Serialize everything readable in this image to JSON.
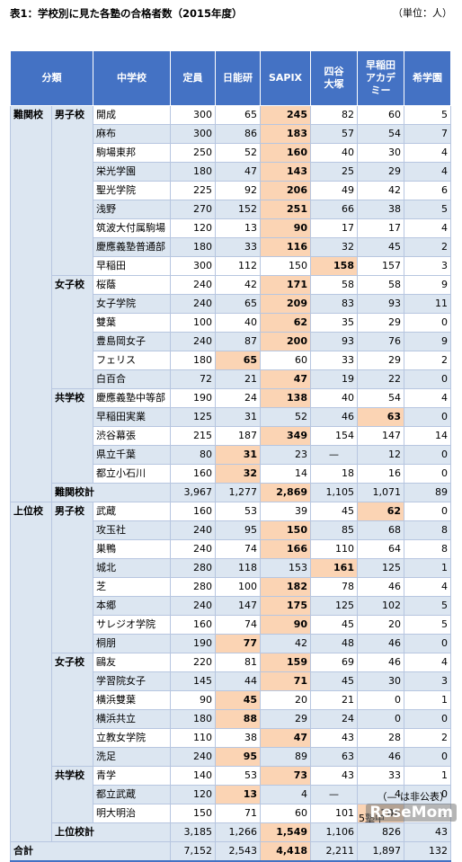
{
  "title": "表1：学校別に見た各塾の合格者数（2015年度）",
  "unit": "（単位：人）",
  "headers": {
    "bunrui": "分類",
    "school": "中学校",
    "teiin": "定員",
    "nichinoken": "日能研",
    "sapix": "SAPIX",
    "yotsuya": "四谷\n大塚",
    "waseda": "早稲田\nアカデ\nミー",
    "kibo": "希学園"
  },
  "groups": [
    {
      "category": "難関校",
      "subgroups": [
        {
          "type": "男子校",
          "rows": [
            {
              "school": "開成",
              "v": [
                "300",
                "65",
                "245",
                "82",
                "60",
                "5"
              ],
              "hl": [
                2
              ]
            },
            {
              "school": "麻布",
              "v": [
                "300",
                "86",
                "183",
                "57",
                "54",
                "7"
              ],
              "hl": [
                2
              ]
            },
            {
              "school": "駒場東邦",
              "v": [
                "250",
                "52",
                "160",
                "40",
                "30",
                "4"
              ],
              "hl": [
                2
              ]
            },
            {
              "school": "栄光学園",
              "v": [
                "180",
                "47",
                "143",
                "25",
                "29",
                "4"
              ],
              "hl": [
                2
              ]
            },
            {
              "school": "聖光学院",
              "v": [
                "225",
                "92",
                "206",
                "49",
                "42",
                "6"
              ],
              "hl": [
                2
              ]
            },
            {
              "school": "浅野",
              "v": [
                "270",
                "152",
                "251",
                "66",
                "38",
                "5"
              ],
              "hl": [
                2
              ]
            },
            {
              "school": "筑波大付属駒場",
              "v": [
                "120",
                "13",
                "90",
                "17",
                "17",
                "4"
              ],
              "hl": [
                2
              ]
            },
            {
              "school": "慶應義塾普通部",
              "v": [
                "180",
                "33",
                "116",
                "32",
                "45",
                "2"
              ],
              "hl": [
                2
              ]
            },
            {
              "school": "早稲田",
              "v": [
                "300",
                "112",
                "150",
                "158",
                "157",
                "3"
              ],
              "hl": [
                3
              ]
            }
          ]
        },
        {
          "type": "女子校",
          "rows": [
            {
              "school": "桜蔭",
              "v": [
                "240",
                "42",
                "171",
                "58",
                "58",
                "9"
              ],
              "hl": [
                2
              ]
            },
            {
              "school": "女子学院",
              "v": [
                "240",
                "65",
                "209",
                "83",
                "93",
                "11"
              ],
              "hl": [
                2
              ]
            },
            {
              "school": "雙葉",
              "v": [
                "100",
                "40",
                "62",
                "35",
                "29",
                "0"
              ],
              "hl": [
                2
              ]
            },
            {
              "school": "豊島岡女子",
              "v": [
                "240",
                "87",
                "200",
                "93",
                "76",
                "9"
              ],
              "hl": [
                2
              ]
            },
            {
              "school": "フェリス",
              "v": [
                "180",
                "65",
                "60",
                "33",
                "29",
                "2"
              ],
              "hl": [
                1
              ]
            },
            {
              "school": "白百合",
              "v": [
                "72",
                "21",
                "47",
                "19",
                "22",
                "0"
              ],
              "hl": [
                2
              ]
            }
          ]
        },
        {
          "type": "共学校",
          "rows": [
            {
              "school": "慶應義塾中等部",
              "v": [
                "190",
                "24",
                "138",
                "40",
                "54",
                "4"
              ],
              "hl": [
                2
              ]
            },
            {
              "school": "早稲田実業",
              "v": [
                "125",
                "31",
                "52",
                "46",
                "63",
                "0"
              ],
              "hl": [
                4
              ]
            },
            {
              "school": "渋谷幕張",
              "v": [
                "215",
                "187",
                "349",
                "154",
                "147",
                "14"
              ],
              "hl": [
                2
              ]
            },
            {
              "school": "県立千葉",
              "v": [
                "80",
                "31",
                "23",
                "—",
                "12",
                "0"
              ],
              "hl": [
                1
              ]
            },
            {
              "school": "都立小石川",
              "v": [
                "160",
                "32",
                "14",
                "18",
                "16",
                "0"
              ],
              "hl": [
                1
              ]
            }
          ]
        }
      ],
      "subtotal": {
        "label": "難関校計",
        "v": [
          "3,967",
          "1,277",
          "2,869",
          "1,105",
          "1,071",
          "89"
        ],
        "hl": [
          2
        ]
      }
    },
    {
      "category": "上位校",
      "subgroups": [
        {
          "type": "男子校",
          "rows": [
            {
              "school": "武蔵",
              "v": [
                "160",
                "53",
                "39",
                "45",
                "62",
                "0"
              ],
              "hl": [
                4
              ]
            },
            {
              "school": "攻玉社",
              "v": [
                "240",
                "95",
                "150",
                "85",
                "68",
                "8"
              ],
              "hl": [
                2
              ]
            },
            {
              "school": "巣鴨",
              "v": [
                "240",
                "74",
                "166",
                "110",
                "64",
                "8"
              ],
              "hl": [
                2
              ]
            },
            {
              "school": "城北",
              "v": [
                "280",
                "118",
                "153",
                "161",
                "125",
                "1"
              ],
              "hl": [
                3
              ]
            },
            {
              "school": "芝",
              "v": [
                "280",
                "100",
                "182",
                "78",
                "46",
                "4"
              ],
              "hl": [
                2
              ]
            },
            {
              "school": "本郷",
              "v": [
                "240",
                "147",
                "175",
                "125",
                "102",
                "5"
              ],
              "hl": [
                2
              ]
            },
            {
              "school": "サレジオ学院",
              "v": [
                "160",
                "74",
                "90",
                "45",
                "20",
                "5"
              ],
              "hl": [
                2
              ]
            },
            {
              "school": "桐朋",
              "v": [
                "190",
                "77",
                "42",
                "48",
                "46",
                "0"
              ],
              "hl": [
                1
              ]
            }
          ]
        },
        {
          "type": "女子校",
          "rows": [
            {
              "school": "鷗友",
              "v": [
                "220",
                "81",
                "159",
                "69",
                "46",
                "4"
              ],
              "hl": [
                2
              ]
            },
            {
              "school": "学習院女子",
              "v": [
                "145",
                "44",
                "71",
                "45",
                "30",
                "3"
              ],
              "hl": [
                2
              ]
            },
            {
              "school": "横浜雙葉",
              "v": [
                "90",
                "45",
                "20",
                "21",
                "0",
                "1"
              ],
              "hl": [
                1
              ]
            },
            {
              "school": "横浜共立",
              "v": [
                "180",
                "88",
                "29",
                "24",
                "0",
                "0"
              ],
              "hl": [
                1
              ]
            },
            {
              "school": "立教女学院",
              "v": [
                "110",
                "38",
                "47",
                "43",
                "28",
                "2"
              ],
              "hl": [
                2
              ]
            },
            {
              "school": "洗足",
              "v": [
                "240",
                "95",
                "89",
                "63",
                "46",
                "0"
              ],
              "hl": [
                1
              ]
            }
          ]
        },
        {
          "type": "共学校",
          "rows": [
            {
              "school": "青学",
              "v": [
                "140",
                "53",
                "73",
                "43",
                "33",
                "1"
              ],
              "hl": [
                2
              ]
            },
            {
              "school": "都立武蔵",
              "v": [
                "120",
                "13",
                "4",
                "—",
                "4",
                "0"
              ],
              "hl": [
                1
              ]
            },
            {
              "school": "明大明治",
              "v": [
                "150",
                "71",
                "60",
                "101",
                "106",
                "1"
              ],
              "hl": [
                4
              ]
            }
          ]
        }
      ],
      "subtotal": {
        "label": "上位校計",
        "v": [
          "3,185",
          "1,266",
          "1,549",
          "1,106",
          "826",
          "43"
        ],
        "hl": [
          2
        ]
      }
    }
  ],
  "total": {
    "label": "合計",
    "v": [
      "7,152",
      "2,543",
      "4,418",
      "2,211",
      "1,897",
      "132"
    ],
    "hl": [
      2
    ]
  },
  "note": "（— は非公表）",
  "source": "5塾中",
  "logo": "ReseMom",
  "colors": {
    "header": "#4472c4",
    "band": "#dce6f1",
    "highlight": "#fbd4b4"
  }
}
